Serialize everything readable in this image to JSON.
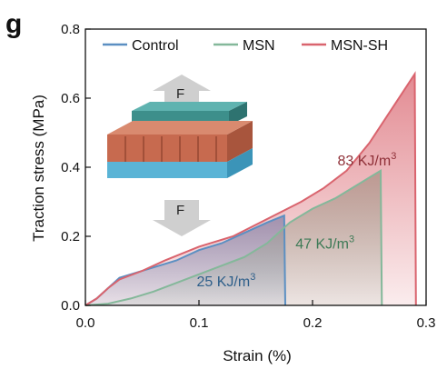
{
  "panel_label": "g",
  "chart_data": {
    "type": "area",
    "xlabel": "Strain (%)",
    "ylabel": "Traction stress (MPa)",
    "xlim": [
      0.0,
      0.3
    ],
    "ylim": [
      0.0,
      0.8
    ],
    "xticks": [
      "0.0",
      "0.1",
      "0.2",
      "0.3"
    ],
    "yticks": [
      "0.0",
      "0.2",
      "0.4",
      "0.6",
      "0.8"
    ],
    "legend_position": "top",
    "colors": {
      "Control": "#5b8fc2",
      "MSN": "#84b89a",
      "MSN-SH": "#d9646e"
    },
    "series": [
      {
        "name": "Control",
        "x": [
          0.0,
          0.01,
          0.02,
          0.03,
          0.04,
          0.06,
          0.08,
          0.1,
          0.12,
          0.14,
          0.16,
          0.175,
          0.176
        ],
        "y": [
          0.0,
          0.02,
          0.05,
          0.08,
          0.09,
          0.11,
          0.13,
          0.16,
          0.18,
          0.21,
          0.24,
          0.26,
          0.0
        ]
      },
      {
        "name": "MSN",
        "x": [
          0.0,
          0.02,
          0.04,
          0.06,
          0.08,
          0.1,
          0.12,
          0.14,
          0.16,
          0.18,
          0.2,
          0.22,
          0.24,
          0.26,
          0.261
        ],
        "y": [
          0.0,
          0.005,
          0.02,
          0.04,
          0.065,
          0.09,
          0.115,
          0.14,
          0.18,
          0.24,
          0.28,
          0.31,
          0.35,
          0.39,
          0.0
        ]
      },
      {
        "name": "MSN-SH",
        "x": [
          0.0,
          0.01,
          0.02,
          0.03,
          0.05,
          0.07,
          0.1,
          0.13,
          0.16,
          0.19,
          0.21,
          0.23,
          0.25,
          0.27,
          0.29,
          0.291
        ],
        "y": [
          0.0,
          0.02,
          0.05,
          0.075,
          0.1,
          0.13,
          0.17,
          0.2,
          0.25,
          0.3,
          0.34,
          0.39,
          0.47,
          0.57,
          0.67,
          0.0
        ]
      }
    ],
    "annotations": [
      {
        "text": "25 KJ/m",
        "sup": "3",
        "x": 0.098,
        "y": 0.055,
        "color": "#2e5f8a"
      },
      {
        "text": "47 KJ/m",
        "sup": "3",
        "x": 0.185,
        "y": 0.165,
        "color": "#3d7a56"
      },
      {
        "text": "83 KJ/m",
        "sup": "3",
        "x": 0.222,
        "y": 0.405,
        "color": "#8f3038"
      }
    ],
    "inset": {
      "force_label_top": "F",
      "force_label_bottom": "F"
    }
  }
}
